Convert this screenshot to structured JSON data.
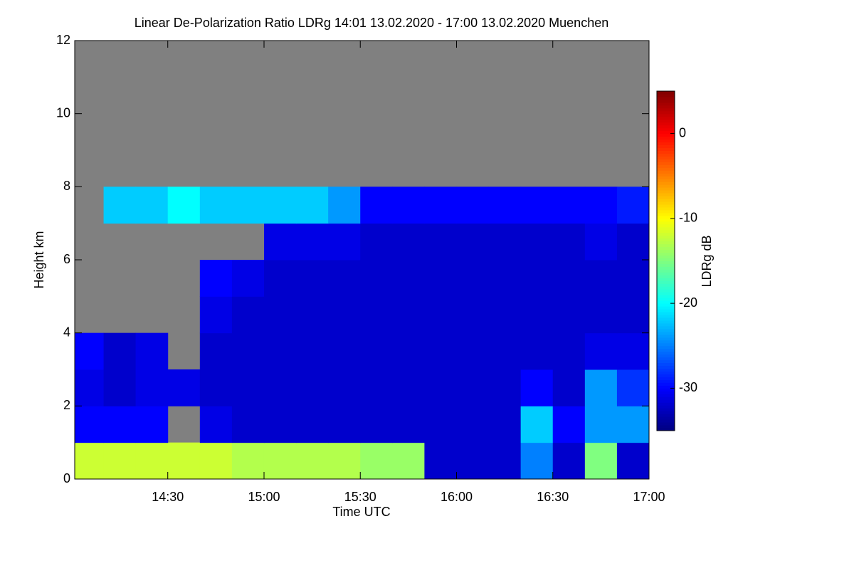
{
  "chart_data": {
    "type": "heatmap",
    "title": "Linear De-Polarization Ratio LDRg   14:01 13.02.2020 - 17:00 13.02.2020 Muenchen",
    "x_label": "Time UTC",
    "y_label": "Height km",
    "colorbar_label": "LDRg dB",
    "colormap": "jet",
    "missing_color": "#808080",
    "x": [
      14.0167,
      14.1667,
      14.3333,
      14.5,
      14.6667,
      14.8333,
      15.0,
      15.1667,
      15.3333,
      15.5,
      15.6667,
      15.8333,
      16.0,
      16.1667,
      16.3333,
      16.5,
      16.6667,
      16.8333,
      17.0
    ],
    "y": [
      0,
      1,
      2,
      3,
      4,
      5,
      6,
      7,
      8,
      9,
      10,
      11,
      12
    ],
    "values": [
      [
        -12,
        -12,
        -12,
        -12,
        -12,
        -13,
        -13,
        -13,
        -13,
        -14,
        -14,
        -32,
        -32,
        -32,
        -25,
        -32,
        -15,
        -32
      ],
      [
        -30,
        -30,
        -30,
        null,
        -31,
        -32,
        -32,
        -32,
        -32,
        -32,
        -32,
        -32,
        -32,
        -32,
        -22,
        -30,
        -24,
        -24
      ],
      [
        -31,
        -32,
        -31,
        -31,
        -32,
        -32,
        -32,
        -32,
        -32,
        -32,
        -32,
        -32,
        -32,
        -32,
        -30,
        -32,
        -24,
        -28
      ],
      [
        -30,
        -32,
        -31,
        null,
        -32,
        -32,
        -32,
        -32,
        -32,
        -32,
        -32,
        -32,
        -32,
        -32,
        -32,
        -32,
        -31,
        -31
      ],
      [
        null,
        null,
        null,
        null,
        -31,
        -32,
        -32,
        -32,
        -32,
        -32,
        -32,
        -32,
        -32,
        -32,
        -32,
        -32,
        -32,
        -32
      ],
      [
        null,
        null,
        null,
        null,
        -30,
        -31,
        -32,
        -32,
        -32,
        -32,
        -32,
        -32,
        -32,
        -32,
        -32,
        -32,
        -32,
        -32
      ],
      [
        null,
        null,
        null,
        null,
        null,
        null,
        -31,
        -31,
        -31,
        -32,
        -32,
        -32,
        -32,
        -32,
        -32,
        -32,
        -31,
        -32
      ],
      [
        null,
        -22,
        -22,
        -20,
        -22,
        -22,
        -22,
        -22,
        -24,
        -30,
        -30,
        -30,
        -30,
        -30,
        -30,
        -30,
        -30,
        -29
      ],
      [
        null,
        null,
        null,
        null,
        null,
        null,
        null,
        null,
        null,
        null,
        null,
        null,
        null,
        null,
        null,
        null,
        null,
        null
      ],
      [
        null,
        null,
        null,
        null,
        null,
        null,
        null,
        null,
        null,
        null,
        null,
        null,
        null,
        null,
        null,
        null,
        null,
        null
      ],
      [
        null,
        null,
        null,
        null,
        null,
        null,
        null,
        null,
        null,
        null,
        null,
        null,
        null,
        null,
        null,
        null,
        null,
        null
      ],
      [
        null,
        null,
        null,
        null,
        null,
        null,
        null,
        null,
        null,
        null,
        null,
        null,
        null,
        null,
        null,
        null,
        null,
        null
      ]
    ],
    "xlim": [
      14.0167,
      17.0
    ],
    "xticks": [
      {
        "value": 14.5,
        "label": "14:30"
      },
      {
        "value": 15.0,
        "label": "15:00"
      },
      {
        "value": 15.5,
        "label": "15:30"
      },
      {
        "value": 16.0,
        "label": "16:00"
      },
      {
        "value": 16.5,
        "label": "16:30"
      },
      {
        "value": 17.0,
        "label": "17:00"
      }
    ],
    "ylim": [
      0,
      12
    ],
    "yticks": [
      0,
      2,
      4,
      6,
      8,
      10,
      12
    ],
    "zlim": [
      -35,
      5
    ],
    "zticks": [
      -30,
      -20,
      -10,
      0
    ]
  }
}
